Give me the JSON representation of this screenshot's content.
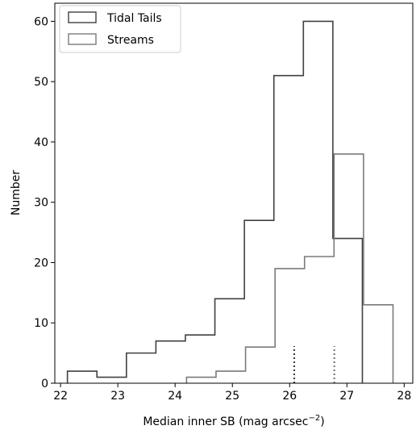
{
  "chart_data": {
    "type": "histogram",
    "xlabel": "Median inner SB (mag arcsec",
    "xlabel_sup": "−2",
    "xlabel_close": ")",
    "ylabel": "Number",
    "xlim": [
      21.9,
      28.15
    ],
    "ylim": [
      0,
      63
    ],
    "xticks": [
      22,
      23,
      24,
      25,
      26,
      27,
      28
    ],
    "yticks": [
      0,
      10,
      20,
      30,
      40,
      50,
      60
    ],
    "legend_position": "top-left",
    "series": [
      {
        "name": "Tidal Tails",
        "color": "#404040",
        "bin_edges": [
          22.12,
          22.635,
          23.15,
          23.665,
          24.18,
          24.695,
          25.21,
          25.725,
          26.24,
          26.755,
          27.27
        ],
        "counts": [
          2,
          1,
          5,
          7,
          8,
          14,
          27,
          51,
          60,
          24
        ],
        "median_marker": 26.08
      },
      {
        "name": "Streams",
        "color": "#7a7a7a",
        "bin_edges": [
          24.2,
          24.715,
          25.23,
          25.745,
          26.26,
          26.775,
          27.29,
          27.805
        ],
        "counts": [
          1,
          2,
          6,
          19,
          21,
          38,
          13
        ],
        "median_marker": 26.78
      }
    ]
  }
}
